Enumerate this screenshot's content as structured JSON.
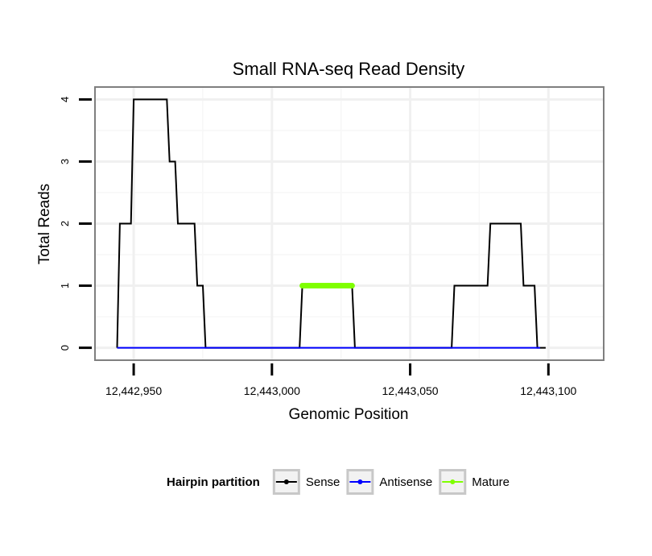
{
  "chart_data": {
    "type": "line",
    "title": "Small RNA-seq Read Density",
    "xlabel": "Genomic Position",
    "ylabel": "Total Reads",
    "xlim": [
      12442936,
      12443120
    ],
    "ylim": [
      -0.2,
      4.2
    ],
    "x_ticks": [
      12442950,
      12443000,
      12443050,
      12443100
    ],
    "x_tick_labels": [
      "12,442,950",
      "12,443,000",
      "12,443,050",
      "12,443,100"
    ],
    "y_ticks": [
      0,
      1,
      2,
      3,
      4
    ],
    "y_tick_labels": [
      "0",
      "1",
      "2",
      "3",
      "4"
    ],
    "grid": true,
    "legend": {
      "title": "Hairpin partition",
      "position": "bottom",
      "entries": [
        "Sense",
        "Antisense",
        "Mature"
      ]
    },
    "series": [
      {
        "name": "Sense",
        "color": "#000000",
        "x": [
          12442944,
          12442945,
          12442949,
          12442950,
          12442951,
          12442962,
          12442963,
          12442965,
          12442966,
          12442972,
          12442973,
          12442975,
          12442976,
          12443010,
          12443011,
          12443029,
          12443030,
          12443065,
          12443066,
          12443078,
          12443079,
          12443090,
          12443091,
          12443095,
          12443096,
          12443099
        ],
        "values": [
          0,
          2,
          2,
          4,
          4,
          4,
          3,
          3,
          2,
          2,
          1,
          1,
          0,
          0,
          1,
          1,
          0,
          0,
          1,
          1,
          2,
          2,
          1,
          1,
          0,
          0
        ]
      },
      {
        "name": "Antisense",
        "color": "#0000ff",
        "x": [
          12442944,
          12443097
        ],
        "values": [
          0,
          0
        ]
      },
      {
        "name": "Mature",
        "color": "#7fff00",
        "x": [
          12443011,
          12443029
        ],
        "values": [
          1,
          1
        ]
      }
    ]
  }
}
